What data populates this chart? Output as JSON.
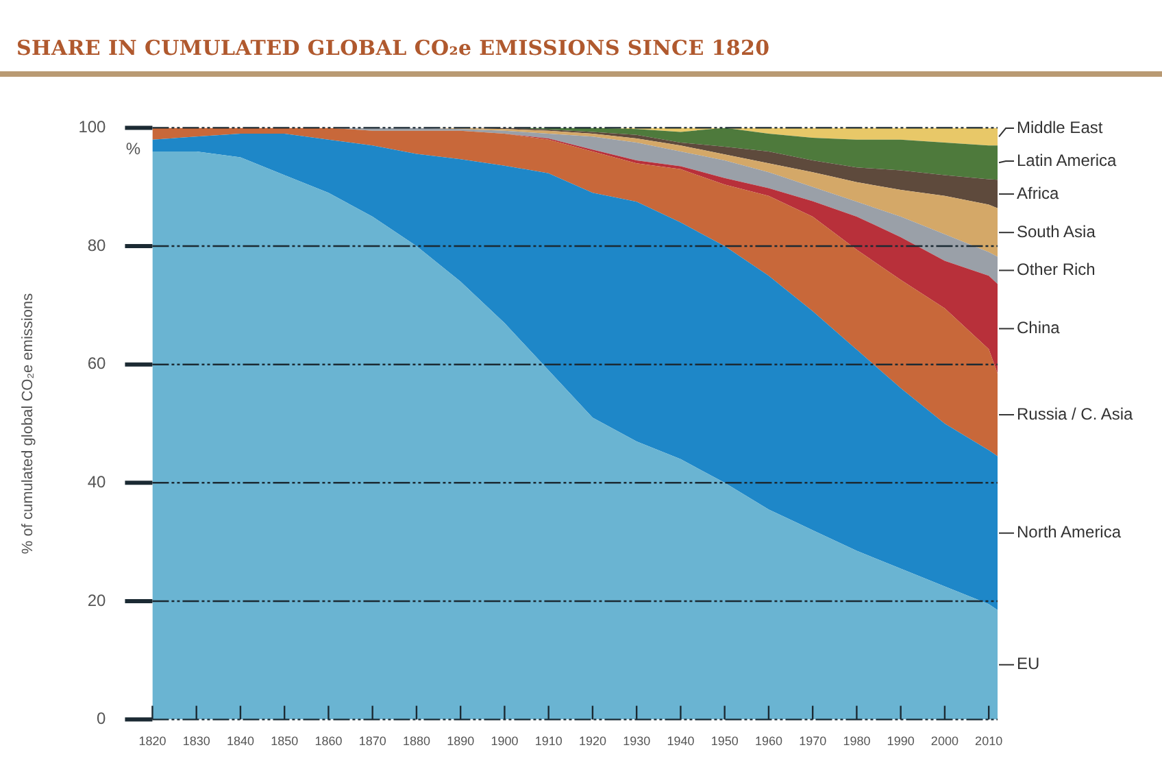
{
  "chart_data": {
    "type": "area",
    "stacked": true,
    "title": "SHARE IN CUMULATED GLOBAL CO₂e EMISSIONS SINCE 1820",
    "ylabel": "% of cumulated global CO₂e emissions",
    "annotations": [
      "%"
    ],
    "x": [
      1820,
      1830,
      1840,
      1850,
      1860,
      1870,
      1880,
      1890,
      1900,
      1910,
      1920,
      1930,
      1940,
      1950,
      1960,
      1970,
      1980,
      1990,
      2000,
      2010,
      2012
    ],
    "xlim": [
      1820,
      2012
    ],
    "xticks": [
      1820,
      1830,
      1840,
      1850,
      1860,
      1870,
      1880,
      1890,
      1900,
      1910,
      1920,
      1930,
      1940,
      1950,
      1960,
      1970,
      1980,
      1990,
      2000,
      2010
    ],
    "ylim": [
      0,
      100
    ],
    "yticks": [
      0,
      20,
      40,
      60,
      80,
      100
    ],
    "grid": "y",
    "legend": false,
    "series": [
      {
        "name": "EU",
        "color": "#6ab4d2",
        "values": [
          96,
          96,
          95,
          92,
          89,
          85,
          80,
          74,
          67,
          59,
          51,
          47,
          44,
          40,
          35.5,
          32,
          28.5,
          25.5,
          22.5,
          19.5,
          18.5
        ]
      },
      {
        "name": "North America",
        "color": "#1e87c8",
        "values": [
          2,
          2.5,
          4,
          7,
          9,
          12,
          15.6,
          20.7,
          26.6,
          33.3,
          38,
          40.5,
          40,
          40,
          39.5,
          37,
          34,
          30.5,
          27.5,
          26,
          26
        ]
      },
      {
        "name": "Russia / C. Asia",
        "color": "#c8683a",
        "values": [
          2,
          1.5,
          1,
          1,
          2,
          2.5,
          3.9,
          4.8,
          5.4,
          5.7,
          7,
          6.5,
          9,
          10.4,
          13.5,
          16,
          16.9,
          18.3,
          19.5,
          17.1,
          14
        ]
      },
      {
        "name": "China",
        "color": "#b8303a",
        "values": [
          0,
          0,
          0,
          0,
          0,
          0,
          0,
          0,
          0,
          0.2,
          0.3,
          0.5,
          0.5,
          1.1,
          1.3,
          2.6,
          5.6,
          7.2,
          8,
          12.4,
          15.1
        ]
      },
      {
        "name": "Other Rich",
        "color": "#9aa0a8",
        "values": [
          0,
          0,
          0,
          0,
          0,
          0.5,
          0.5,
          0.3,
          0.5,
          0.8,
          2.2,
          3,
          2.5,
          3,
          2.7,
          2.4,
          2.5,
          3.5,
          4.5,
          4,
          4.6
        ]
      },
      {
        "name": "South Asia",
        "color": "#d4a868",
        "values": [
          0,
          0,
          0,
          0,
          0,
          0,
          0,
          0.2,
          0.3,
          0.5,
          0.5,
          0.7,
          1,
          1,
          1.5,
          2.5,
          3.3,
          4.5,
          6.5,
          8,
          8.2
        ]
      },
      {
        "name": "Africa",
        "color": "#5e4a3c",
        "values": [
          0,
          0,
          0,
          0,
          0,
          0,
          0,
          0,
          0.2,
          0.2,
          0.3,
          0.6,
          0.5,
          1.3,
          2,
          2,
          2.5,
          3.3,
          3.5,
          4.3,
          4.8
        ]
      },
      {
        "name": "Latin America",
        "color": "#4e7a3c",
        "values": [
          0,
          0,
          0,
          0,
          0,
          0,
          0,
          0,
          0,
          0.3,
          0.7,
          1,
          1.8,
          3.2,
          3,
          3.8,
          4.7,
          5.2,
          5.5,
          5.7,
          5.8
        ]
      },
      {
        "name": "Middle East",
        "color": "#e8c868",
        "values": [
          0,
          0,
          0,
          0,
          0,
          0,
          0,
          0,
          0,
          0,
          0,
          0.2,
          0.7,
          0,
          1,
          1.7,
          2,
          2,
          2.5,
          3,
          3
        ]
      }
    ]
  }
}
